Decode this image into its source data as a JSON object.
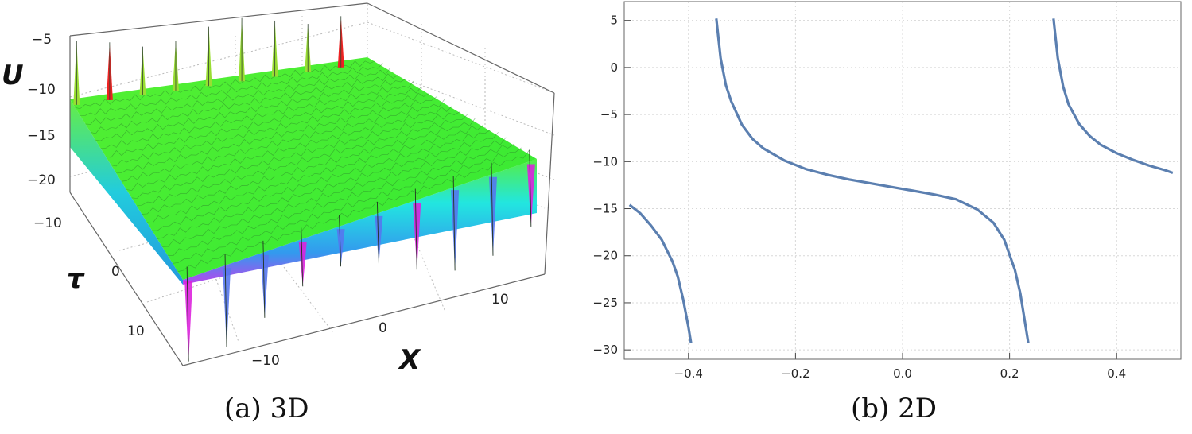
{
  "panel_a": {
    "caption": "(a) 3D",
    "chart_data": {
      "type": "surface3d",
      "zlabel": "U",
      "xlabel": "X",
      "ylabel": "τ",
      "z_ticks": [
        "-5",
        "-10",
        "-15",
        "-20"
      ],
      "tau_ticks": [
        "-10",
        "0",
        "10"
      ],
      "x_ticks": [
        "-10",
        "0",
        "10"
      ],
      "zlim": [
        -22,
        -4
      ],
      "surface_level": -12.5,
      "spike_columns": 9,
      "colors": {
        "surface": "#33ee22",
        "low": "#22ddee",
        "deep": "#dd22dd",
        "peak": "#ee2222"
      }
    }
  },
  "panel_b": {
    "caption": "(b) 2D",
    "chart_data": {
      "type": "line",
      "xlim": [
        -0.52,
        0.52
      ],
      "ylim": [
        -31,
        7
      ],
      "x_ticks": [
        -0.4,
        -0.2,
        0.0,
        0.2,
        0.4
      ],
      "x_tick_labels": [
        "-0.4",
        "-0.2",
        "0.0",
        "0.2",
        "0.4"
      ],
      "y_ticks": [
        5,
        0,
        -5,
        -10,
        -15,
        -20,
        -25,
        -30
      ],
      "y_tick_labels": [
        "5",
        "0",
        "-5",
        "-10",
        "-15",
        "-20",
        "-25",
        "-30"
      ],
      "grid": true,
      "color": "#5b7fb0",
      "series": [
        {
          "x": [
            -0.51,
            -0.49,
            -0.47,
            -0.45,
            -0.43,
            -0.42,
            -0.41,
            -0.4,
            -0.395
          ],
          "y": [
            -14.6,
            -15.5,
            -16.8,
            -18.3,
            -20.6,
            -22.2,
            -24.6,
            -27.6,
            -29.3
          ]
        },
        {
          "x": [
            -0.348,
            -0.34,
            -0.33,
            -0.32,
            -0.3,
            -0.28,
            -0.26,
            -0.22,
            -0.18,
            -0.14,
            -0.1,
            -0.06,
            -0.02,
            0.02,
            0.06,
            0.1,
            0.14,
            0.17,
            0.19,
            0.21,
            0.22,
            0.23,
            0.235
          ],
          "y": [
            5.2,
            1.0,
            -1.9,
            -3.6,
            -6.1,
            -7.6,
            -8.6,
            -9.9,
            -10.8,
            -11.4,
            -11.9,
            -12.3,
            -12.7,
            -13.1,
            -13.5,
            -14.0,
            -15.1,
            -16.5,
            -18.3,
            -21.5,
            -24.0,
            -27.5,
            -29.3
          ]
        },
        {
          "x": [
            0.282,
            0.29,
            0.3,
            0.31,
            0.33,
            0.35,
            0.37,
            0.4,
            0.43,
            0.46,
            0.49,
            0.505
          ],
          "y": [
            5.2,
            1.0,
            -2.0,
            -3.9,
            -6.0,
            -7.3,
            -8.2,
            -9.1,
            -9.8,
            -10.4,
            -10.9,
            -11.2
          ]
        }
      ]
    }
  }
}
